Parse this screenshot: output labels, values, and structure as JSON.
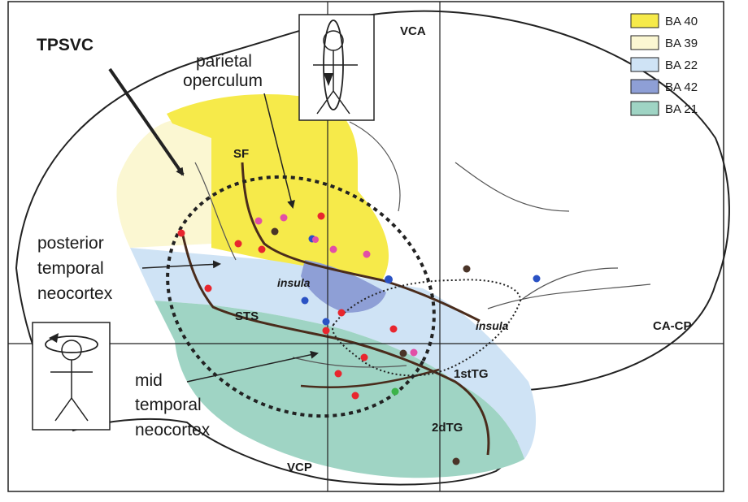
{
  "figure": {
    "title": "TPSVC",
    "reference_lines": {
      "vca": "VCA",
      "vcp": "VCP",
      "ca_cp": "CA-CP"
    },
    "region_labels": {
      "parietal_line1": "parietal",
      "parietal_line2": "operculum",
      "posterior_line1": "posterior",
      "posterior_line2": "temporal",
      "posterior_line3": "neocortex",
      "mid_line1": "mid",
      "mid_line2": "temporal",
      "mid_line3": "neocortex",
      "sf": "SF",
      "sts": "STS",
      "insula_1": "insula",
      "insula_2": "insula",
      "first_tg": "1stTG",
      "second_tg": "2dTG"
    }
  },
  "legend": [
    {
      "label": "BA 40",
      "color": "#f6ea4a"
    },
    {
      "label": "BA 39",
      "color": "#fbf7d2"
    },
    {
      "label": "BA 22",
      "color": "#cfe3f5"
    },
    {
      "label": "BA 42",
      "color": "#8e9fd6"
    },
    {
      "label": "BA 21",
      "color": "#9fd4c4"
    }
  ],
  "colors": {
    "red": "#e8262e",
    "pink": "#e24fa6",
    "blue": "#2a52c4",
    "brown": "#4a3428",
    "green": "#3cb34a"
  }
}
